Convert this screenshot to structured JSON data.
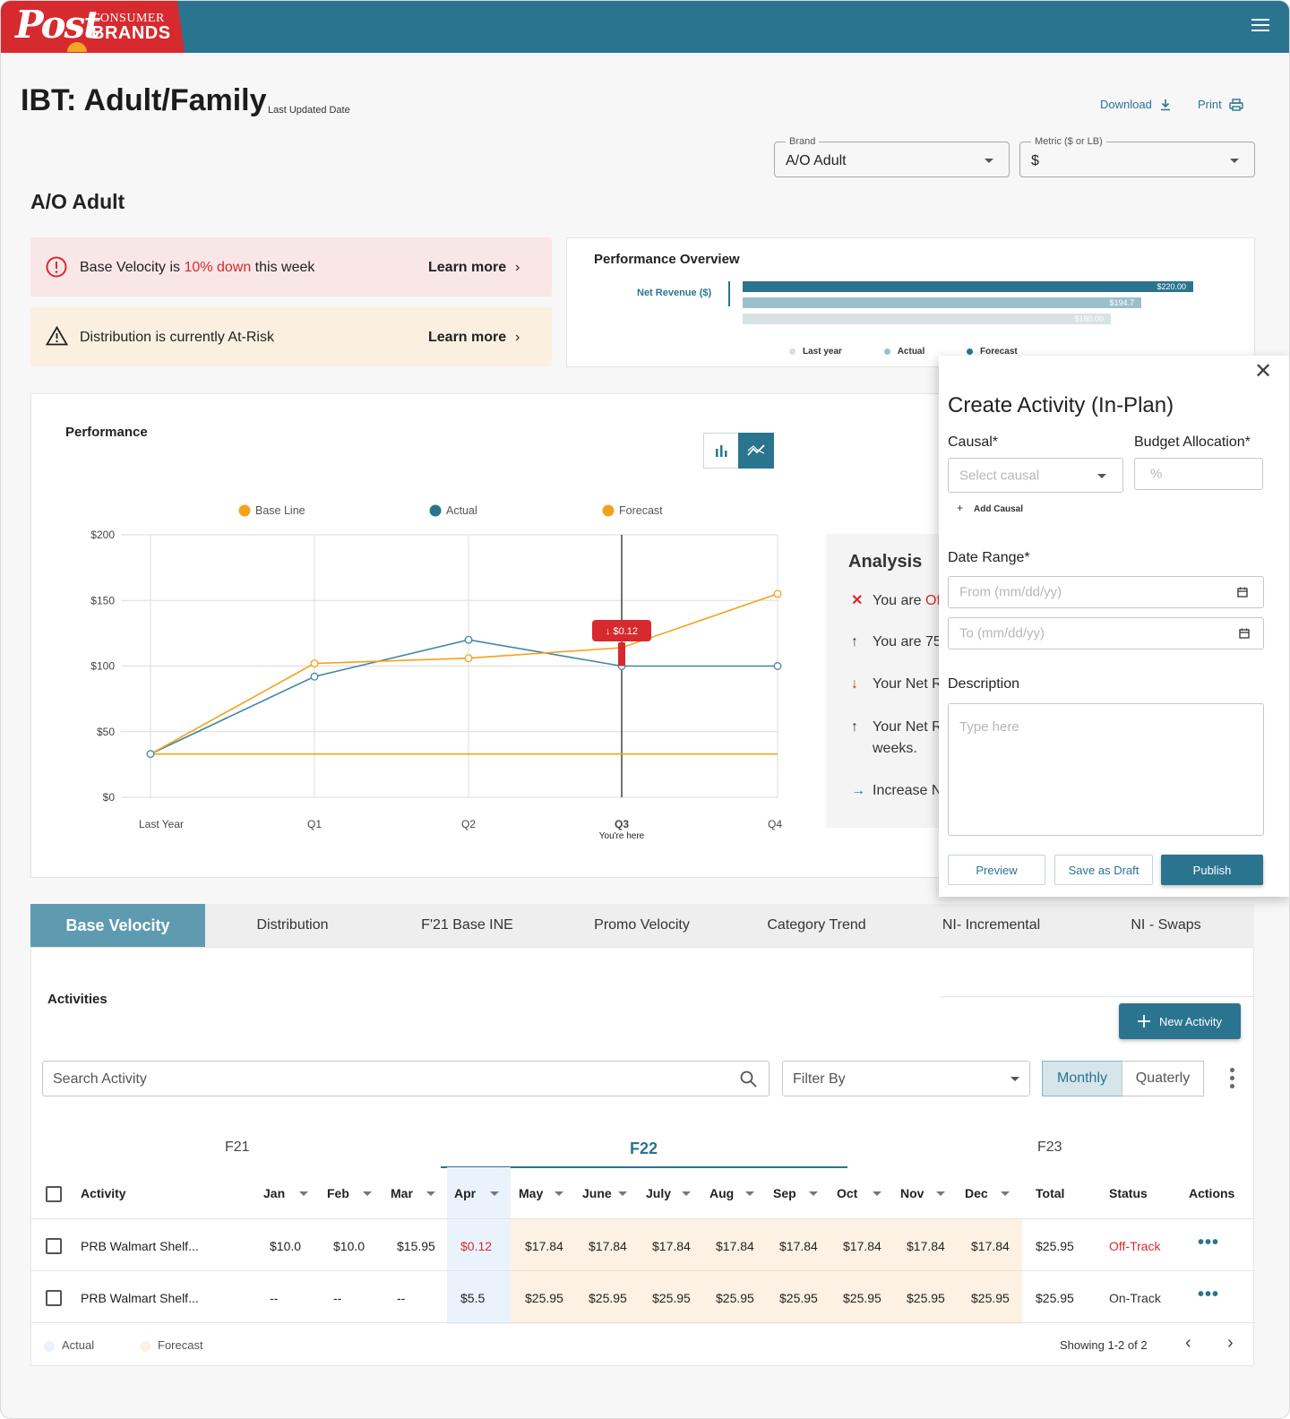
{
  "header": {
    "logo_post": "Post",
    "logo_consumer": "CONSUMER",
    "logo_brands": "BRANDS"
  },
  "page": {
    "title": "IBT: Adult/Family",
    "last_updated": "Last Updated Date",
    "download": "Download",
    "print": "Print"
  },
  "filters": {
    "brand_label": "Brand",
    "brand_value": "A/O Adult",
    "metric_label": "Metric ($ or LB)",
    "metric_value": "$"
  },
  "section_title": "A/O Adult",
  "alerts": [
    {
      "prefix": "Base Velocity is ",
      "highlight": "10% down",
      "suffix": " this week",
      "link": "Learn more"
    },
    {
      "text": "Distribution is currently At-Risk",
      "link": "Learn more"
    }
  ],
  "performance_overview": {
    "title": "Performance Overview",
    "label": "Net Revenue ($)",
    "bars": [
      {
        "value": "$220.00",
        "color": "#2b7490",
        "fraction": 1.0
      },
      {
        "value": "$194.7",
        "color": "#9cc0cb",
        "fraction": 0.885
      },
      {
        "value": "$180.00",
        "color": "#d8e2e5",
        "fraction": 0.818
      }
    ],
    "legend": [
      "Last year",
      "Actual",
      "Forecast"
    ],
    "legend_colors": [
      "#dcdcdc",
      "#9cc0cb",
      "#2b7490"
    ]
  },
  "performance": {
    "title": "Performance",
    "legend": [
      "Base Line",
      "Actual",
      "Forecast"
    ],
    "you_are_here": "You're here",
    "marker_label": "$0.12"
  },
  "chart_data": {
    "type": "line",
    "categories": [
      "Last Year",
      "Q1",
      "Q2",
      "Q3",
      "Q4"
    ],
    "ylim": [
      0,
      200
    ],
    "y_ticks": [
      "$0",
      "$50",
      "$100",
      "$150",
      "$200"
    ],
    "series": [
      {
        "name": "Base Line",
        "color": "#f5a21b",
        "values": [
          33,
          33,
          33,
          33,
          33
        ]
      },
      {
        "name": "Actual",
        "color": "#3f87a6",
        "values": [
          33,
          92,
          120,
          100,
          100
        ]
      },
      {
        "name": "Forecast",
        "color": "#f5a21b",
        "values": [
          33,
          102,
          106,
          114,
          155
        ]
      }
    ],
    "grid": true,
    "legend_position": "top"
  },
  "analysis": {
    "title": "Analysis",
    "rows": [
      {
        "icon": "✕",
        "text": "You are ",
        "highlight": "Of",
        "color": "#d62a2f"
      },
      {
        "icon": "↑",
        "text": "You are 75",
        "color": "#333"
      },
      {
        "icon": "↓",
        "text": "Your Net R",
        "color": "#d62a2f"
      },
      {
        "icon": "↑",
        "text": "Your Net R",
        "text2": "weeks.",
        "color": "#333"
      },
      {
        "icon": "→",
        "text": "Increase N",
        "color": "#2b7490"
      }
    ]
  },
  "modal": {
    "title": "Create Activity (In-Plan)",
    "causal_label": "Causal*",
    "causal_placeholder": "Select causal",
    "budget_label": "Budget Allocation*",
    "budget_placeholder": "%",
    "add_causal": "Add Causal",
    "date_label": "Date Range*",
    "from_placeholder": "From (mm/dd/yy)",
    "to_placeholder": "To (mm/dd/yy)",
    "description_label": "Description",
    "description_placeholder": "Type here",
    "preview": "Preview",
    "save_draft": "Save as Draft",
    "publish": "Publish"
  },
  "tabs": [
    "Base Velocity",
    "Distribution",
    "F'21 Base INE",
    "Promo Velocity",
    "Category Trend",
    "NI- Incremental",
    "NI - Swaps"
  ],
  "activities": {
    "title": "Activities",
    "new_activity": "New Activity",
    "search_placeholder": "Search Activity",
    "filter_placeholder": "Filter By",
    "monthly": "Monthly",
    "quarterly": "Quaterly",
    "years": [
      "F21",
      "F22",
      "F23"
    ],
    "columns": [
      "Activity",
      "Jan",
      "Feb",
      "Mar",
      "Apr",
      "May",
      "June",
      "July",
      "Aug",
      "Sep",
      "Oct",
      "Nov",
      "Dec",
      "Total",
      "Status",
      "Actions"
    ],
    "rows": [
      {
        "activity": "PRB Walmart Shelf...",
        "months": [
          "$10.0",
          "$10.0",
          "$15.95",
          "$0.12",
          "$17.84",
          "$17.84",
          "$17.84",
          "$17.84",
          "$17.84",
          "$17.84",
          "$17.84",
          "$17.84"
        ],
        "total": "$25.95",
        "status": "Off-Track"
      },
      {
        "activity": "PRB Walmart Shelf...",
        "months": [
          "--",
          "--",
          "--",
          "$5.5",
          "$25.95",
          "$25.95",
          "$25.95",
          "$25.95",
          "$25.95",
          "$25.95",
          "$25.95",
          "$25.95"
        ],
        "total": "$25.95",
        "status": "On-Track"
      }
    ],
    "legend_actual": "Actual",
    "legend_forecast": "Forecast",
    "showing": "Showing 1-2 of 2"
  }
}
